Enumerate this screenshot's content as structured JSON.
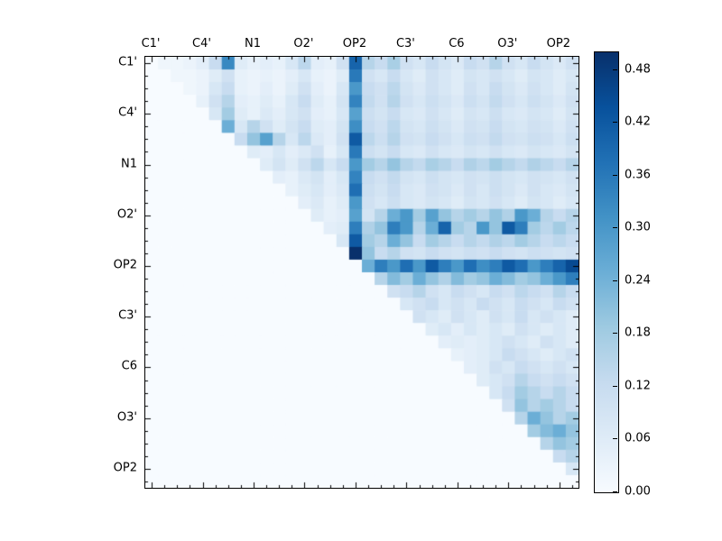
{
  "figure": {
    "background": "#ffffff"
  },
  "chart_data": {
    "type": "heatmap",
    "title": "",
    "xlabel": "",
    "ylabel": "",
    "n_cells": 34,
    "x_ticklabels": [
      "C1'",
      "C4'",
      "N1",
      "O2'",
      "OP2",
      "C3'",
      "C6",
      "O3'",
      "OP2"
    ],
    "y_ticklabels": [
      "C1'",
      "C4'",
      "N1",
      "O2'",
      "OP2",
      "C3'",
      "C6",
      "O3'",
      "OP2"
    ],
    "major_tick_cells": [
      0,
      4,
      8,
      12,
      16,
      20,
      24,
      28,
      32
    ],
    "vmin": 0.0,
    "vmax": 0.5,
    "colormap": "Blues",
    "colormap_stops": [
      {
        "pos": 0.0,
        "color": "#f7fbff"
      },
      {
        "pos": 0.125,
        "color": "#deebf7"
      },
      {
        "pos": 0.25,
        "color": "#c6dbef"
      },
      {
        "pos": 0.375,
        "color": "#9ecae1"
      },
      {
        "pos": 0.5,
        "color": "#6baed6"
      },
      {
        "pos": 0.625,
        "color": "#4292c6"
      },
      {
        "pos": 0.75,
        "color": "#2171b5"
      },
      {
        "pos": 0.875,
        "color": "#08519c"
      },
      {
        "pos": 1.0,
        "color": "#08306b"
      }
    ],
    "colorbar_ticks": [
      "0.00",
      "0.06",
      "0.12",
      "0.18",
      "0.24",
      "0.30",
      "0.36",
      "0.42",
      "0.48"
    ],
    "matrix": [
      [
        0,
        0.02,
        0.02,
        0.03,
        0.05,
        0.12,
        0.33,
        0.06,
        0.04,
        0.05,
        0.04,
        0.08,
        0.14,
        0.05,
        0.04,
        0.1,
        0.4,
        0.15,
        0.12,
        0.17,
        0.1,
        0.08,
        0.12,
        0.09,
        0.07,
        0.12,
        0.1,
        0.15,
        0.1,
        0.08,
        0.12,
        0.09,
        0.07,
        0.1
      ],
      [
        0,
        0,
        0.02,
        0.02,
        0.03,
        0.06,
        0.1,
        0.04,
        0.03,
        0.04,
        0.03,
        0.05,
        0.08,
        0.04,
        0.03,
        0.06,
        0.36,
        0.1,
        0.08,
        0.12,
        0.08,
        0.06,
        0.1,
        0.08,
        0.06,
        0.09,
        0.08,
        0.1,
        0.08,
        0.06,
        0.09,
        0.08,
        0.06,
        0.08
      ],
      [
        0,
        0,
        0,
        0.02,
        0.03,
        0.08,
        0.12,
        0.04,
        0.03,
        0.05,
        0.03,
        0.06,
        0.1,
        0.05,
        0.03,
        0.08,
        0.3,
        0.12,
        0.1,
        0.14,
        0.09,
        0.07,
        0.1,
        0.08,
        0.06,
        0.1,
        0.08,
        0.12,
        0.09,
        0.07,
        0.1,
        0.08,
        0.06,
        0.09
      ],
      [
        0,
        0,
        0,
        0,
        0.04,
        0.1,
        0.15,
        0.05,
        0.04,
        0.06,
        0.04,
        0.08,
        0.12,
        0.06,
        0.04,
        0.09,
        0.34,
        0.13,
        0.1,
        0.15,
        0.1,
        0.08,
        0.11,
        0.09,
        0.07,
        0.11,
        0.09,
        0.13,
        0.1,
        0.08,
        0.11,
        0.09,
        0.07,
        0.1
      ],
      [
        0,
        0,
        0,
        0,
        0,
        0.08,
        0.18,
        0.06,
        0.04,
        0.07,
        0.05,
        0.08,
        0.1,
        0.05,
        0.04,
        0.08,
        0.28,
        0.11,
        0.09,
        0.12,
        0.08,
        0.07,
        0.1,
        0.08,
        0.06,
        0.09,
        0.08,
        0.11,
        0.08,
        0.07,
        0.09,
        0.08,
        0.06,
        0.09
      ],
      [
        0,
        0,
        0,
        0,
        0,
        0,
        0.25,
        0.08,
        0.15,
        0.1,
        0.06,
        0.09,
        0.12,
        0.06,
        0.05,
        0.09,
        0.32,
        0.12,
        0.1,
        0.14,
        0.09,
        0.08,
        0.11,
        0.09,
        0.07,
        0.1,
        0.09,
        0.12,
        0.09,
        0.08,
        0.1,
        0.09,
        0.07,
        0.1
      ],
      [
        0,
        0,
        0,
        0,
        0,
        0,
        0,
        0.12,
        0.2,
        0.28,
        0.15,
        0.08,
        0.14,
        0.07,
        0.05,
        0.1,
        0.42,
        0.14,
        0.11,
        0.15,
        0.1,
        0.09,
        0.12,
        0.1,
        0.08,
        0.11,
        0.1,
        0.13,
        0.1,
        0.09,
        0.11,
        0.1,
        0.08,
        0.11
      ],
      [
        0,
        0,
        0,
        0,
        0,
        0,
        0,
        0,
        0.06,
        0.05,
        0.08,
        0.05,
        0.07,
        0.1,
        0.04,
        0.08,
        0.36,
        0.11,
        0.09,
        0.12,
        0.08,
        0.07,
        0.1,
        0.08,
        0.07,
        0.09,
        0.08,
        0.1,
        0.08,
        0.07,
        0.09,
        0.08,
        0.07,
        0.09
      ],
      [
        0,
        0,
        0,
        0,
        0,
        0,
        0,
        0,
        0,
        0.06,
        0.09,
        0.06,
        0.1,
        0.14,
        0.08,
        0.12,
        0.3,
        0.18,
        0.15,
        0.2,
        0.15,
        0.13,
        0.17,
        0.15,
        0.12,
        0.16,
        0.14,
        0.18,
        0.15,
        0.13,
        0.16,
        0.14,
        0.12,
        0.15
      ],
      [
        0,
        0,
        0,
        0,
        0,
        0,
        0,
        0,
        0,
        0,
        0.05,
        0.04,
        0.07,
        0.09,
        0.05,
        0.08,
        0.34,
        0.12,
        0.1,
        0.13,
        0.09,
        0.08,
        0.11,
        0.09,
        0.08,
        0.1,
        0.09,
        0.11,
        0.09,
        0.08,
        0.1,
        0.09,
        0.08,
        0.1
      ],
      [
        0,
        0,
        0,
        0,
        0,
        0,
        0,
        0,
        0,
        0,
        0,
        0.04,
        0.06,
        0.08,
        0.05,
        0.07,
        0.38,
        0.11,
        0.09,
        0.12,
        0.08,
        0.07,
        0.1,
        0.09,
        0.07,
        0.1,
        0.08,
        0.11,
        0.09,
        0.07,
        0.1,
        0.08,
        0.07,
        0.09
      ],
      [
        0,
        0,
        0,
        0,
        0,
        0,
        0,
        0,
        0,
        0,
        0,
        0,
        0.05,
        0.07,
        0.04,
        0.06,
        0.3,
        0.1,
        0.08,
        0.11,
        0.08,
        0.07,
        0.09,
        0.08,
        0.06,
        0.09,
        0.08,
        0.1,
        0.08,
        0.06,
        0.09,
        0.08,
        0.06,
        0.08
      ],
      [
        0,
        0,
        0,
        0,
        0,
        0,
        0,
        0,
        0,
        0,
        0,
        0,
        0,
        0.06,
        0.04,
        0.05,
        0.28,
        0.09,
        0.15,
        0.25,
        0.3,
        0.18,
        0.28,
        0.2,
        0.15,
        0.18,
        0.15,
        0.2,
        0.16,
        0.3,
        0.25,
        0.15,
        0.12,
        0.15
      ],
      [
        0,
        0,
        0,
        0,
        0,
        0,
        0,
        0,
        0,
        0,
        0,
        0,
        0,
        0,
        0.05,
        0.06,
        0.35,
        0.16,
        0.2,
        0.35,
        0.3,
        0.15,
        0.25,
        0.4,
        0.18,
        0.15,
        0.3,
        0.2,
        0.42,
        0.35,
        0.18,
        0.14,
        0.18,
        0.14
      ],
      [
        0,
        0,
        0,
        0,
        0,
        0,
        0,
        0,
        0,
        0,
        0,
        0,
        0,
        0,
        0,
        0.08,
        0.42,
        0.18,
        0.15,
        0.25,
        0.2,
        0.12,
        0.18,
        0.15,
        0.12,
        0.15,
        0.13,
        0.16,
        0.14,
        0.18,
        0.15,
        0.12,
        0.14,
        0.12
      ],
      [
        0,
        0,
        0,
        0,
        0,
        0,
        0,
        0,
        0,
        0,
        0,
        0,
        0,
        0,
        0,
        0,
        0.5,
        0.2,
        0.12,
        0.15,
        0.1,
        0.09,
        0.12,
        0.1,
        0.09,
        0.11,
        0.1,
        0.12,
        0.1,
        0.09,
        0.11,
        0.1,
        0.09,
        0.1
      ],
      [
        0,
        0,
        0,
        0,
        0,
        0,
        0,
        0,
        0,
        0,
        0,
        0,
        0,
        0,
        0,
        0,
        0,
        0.25,
        0.35,
        0.3,
        0.38,
        0.3,
        0.42,
        0.35,
        0.3,
        0.38,
        0.32,
        0.35,
        0.42,
        0.38,
        0.3,
        0.35,
        0.4,
        0.45
      ],
      [
        0,
        0,
        0,
        0,
        0,
        0,
        0,
        0,
        0,
        0,
        0,
        0,
        0,
        0,
        0,
        0,
        0,
        0,
        0.15,
        0.22,
        0.18,
        0.25,
        0.2,
        0.16,
        0.22,
        0.18,
        0.2,
        0.25,
        0.22,
        0.18,
        0.2,
        0.25,
        0.3,
        0.35
      ],
      [
        0,
        0,
        0,
        0,
        0,
        0,
        0,
        0,
        0,
        0,
        0,
        0,
        0,
        0,
        0,
        0,
        0,
        0,
        0,
        0.1,
        0.12,
        0.15,
        0.1,
        0.08,
        0.12,
        0.1,
        0.08,
        0.12,
        0.1,
        0.14,
        0.12,
        0.1,
        0.15,
        0.12
      ],
      [
        0,
        0,
        0,
        0,
        0,
        0,
        0,
        0,
        0,
        0,
        0,
        0,
        0,
        0,
        0,
        0,
        0,
        0,
        0,
        0,
        0.08,
        0.1,
        0.12,
        0.08,
        0.1,
        0.08,
        0.12,
        0.1,
        0.08,
        0.12,
        0.1,
        0.08,
        0.12,
        0.1
      ],
      [
        0,
        0,
        0,
        0,
        0,
        0,
        0,
        0,
        0,
        0,
        0,
        0,
        0,
        0,
        0,
        0,
        0,
        0,
        0,
        0,
        0,
        0.1,
        0.08,
        0.06,
        0.1,
        0.08,
        0.06,
        0.1,
        0.08,
        0.12,
        0.08,
        0.1,
        0.08,
        0.06
      ],
      [
        0,
        0,
        0,
        0,
        0,
        0,
        0,
        0,
        0,
        0,
        0,
        0,
        0,
        0,
        0,
        0,
        0,
        0,
        0,
        0,
        0,
        0,
        0.06,
        0.08,
        0.05,
        0.08,
        0.06,
        0.08,
        0.06,
        0.1,
        0.08,
        0.06,
        0.08,
        0.06
      ],
      [
        0,
        0,
        0,
        0,
        0,
        0,
        0,
        0,
        0,
        0,
        0,
        0,
        0,
        0,
        0,
        0,
        0,
        0,
        0,
        0,
        0,
        0,
        0,
        0.05,
        0.06,
        0.05,
        0.06,
        0.08,
        0.1,
        0.08,
        0.06,
        0.1,
        0.08,
        0.06
      ],
      [
        0,
        0,
        0,
        0,
        0,
        0,
        0,
        0,
        0,
        0,
        0,
        0,
        0,
        0,
        0,
        0,
        0,
        0,
        0,
        0,
        0,
        0,
        0,
        0,
        0.04,
        0.05,
        0.06,
        0.08,
        0.12,
        0.1,
        0.08,
        0.06,
        0.08,
        0.1
      ],
      [
        0,
        0,
        0,
        0,
        0,
        0,
        0,
        0,
        0,
        0,
        0,
        0,
        0,
        0,
        0,
        0,
        0,
        0,
        0,
        0,
        0,
        0,
        0,
        0,
        0,
        0.05,
        0.06,
        0.1,
        0.08,
        0.12,
        0.1,
        0.08,
        0.1,
        0.08
      ],
      [
        0,
        0,
        0,
        0,
        0,
        0,
        0,
        0,
        0,
        0,
        0,
        0,
        0,
        0,
        0,
        0,
        0,
        0,
        0,
        0,
        0,
        0,
        0,
        0,
        0,
        0,
        0.06,
        0.08,
        0.1,
        0.15,
        0.12,
        0.1,
        0.12,
        0.1
      ],
      [
        0,
        0,
        0,
        0,
        0,
        0,
        0,
        0,
        0,
        0,
        0,
        0,
        0,
        0,
        0,
        0,
        0,
        0,
        0,
        0,
        0,
        0,
        0,
        0,
        0,
        0,
        0,
        0.08,
        0.12,
        0.18,
        0.15,
        0.12,
        0.15,
        0.12
      ],
      [
        0,
        0,
        0,
        0,
        0,
        0,
        0,
        0,
        0,
        0,
        0,
        0,
        0,
        0,
        0,
        0,
        0,
        0,
        0,
        0,
        0,
        0,
        0,
        0,
        0,
        0,
        0,
        0,
        0.1,
        0.2,
        0.15,
        0.18,
        0.15,
        0.12
      ],
      [
        0,
        0,
        0,
        0,
        0,
        0,
        0,
        0,
        0,
        0,
        0,
        0,
        0,
        0,
        0,
        0,
        0,
        0,
        0,
        0,
        0,
        0,
        0,
        0,
        0,
        0,
        0,
        0,
        0,
        0.15,
        0.25,
        0.2,
        0.15,
        0.18
      ],
      [
        0,
        0,
        0,
        0,
        0,
        0,
        0,
        0,
        0,
        0,
        0,
        0,
        0,
        0,
        0,
        0,
        0,
        0,
        0,
        0,
        0,
        0,
        0,
        0,
        0,
        0,
        0,
        0,
        0,
        0,
        0.18,
        0.22,
        0.25,
        0.2
      ],
      [
        0,
        0,
        0,
        0,
        0,
        0,
        0,
        0,
        0,
        0,
        0,
        0,
        0,
        0,
        0,
        0,
        0,
        0,
        0,
        0,
        0,
        0,
        0,
        0,
        0,
        0,
        0,
        0,
        0,
        0,
        0,
        0.15,
        0.2,
        0.18
      ],
      [
        0,
        0,
        0,
        0,
        0,
        0,
        0,
        0,
        0,
        0,
        0,
        0,
        0,
        0,
        0,
        0,
        0,
        0,
        0,
        0,
        0,
        0,
        0,
        0,
        0,
        0,
        0,
        0,
        0,
        0,
        0,
        0,
        0.12,
        0.15
      ],
      [
        0,
        0,
        0,
        0,
        0,
        0,
        0,
        0,
        0,
        0,
        0,
        0,
        0,
        0,
        0,
        0,
        0,
        0,
        0,
        0,
        0,
        0,
        0,
        0,
        0,
        0,
        0,
        0,
        0,
        0,
        0,
        0,
        0,
        0.08
      ],
      [
        0,
        0,
        0,
        0,
        0,
        0,
        0,
        0,
        0,
        0,
        0,
        0,
        0,
        0,
        0,
        0,
        0,
        0,
        0,
        0,
        0,
        0,
        0,
        0,
        0,
        0,
        0,
        0,
        0,
        0,
        0,
        0,
        0,
        0
      ]
    ]
  }
}
